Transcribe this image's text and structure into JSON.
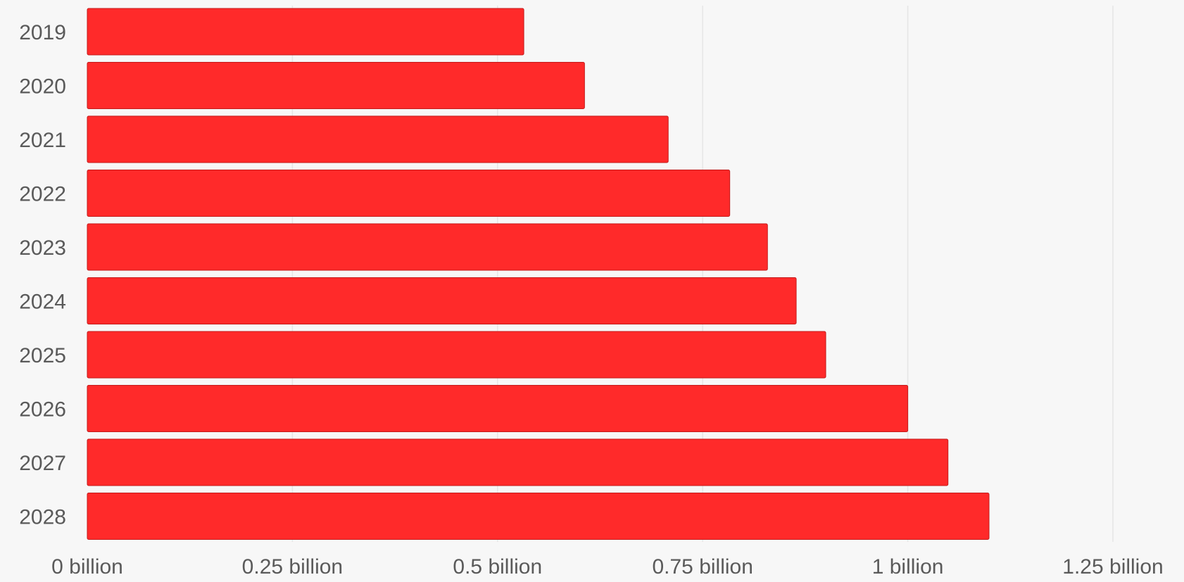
{
  "chart_data": {
    "type": "bar",
    "orientation": "horizontal",
    "categories": [
      "2019",
      "2020",
      "2021",
      "2022",
      "2023",
      "2024",
      "2025",
      "2026",
      "2027",
      "2028"
    ],
    "values": [
      0.532,
      0.606,
      0.708,
      0.783,
      0.829,
      0.864,
      0.9,
      1.0,
      1.049,
      1.099
    ],
    "x_ticks": [
      0,
      0.25,
      0.5,
      0.75,
      1,
      1.25
    ],
    "x_tick_labels": [
      "0 billion",
      "0.25 billion",
      "0.5 billion",
      "0.75 billion",
      "1 billion",
      "1.25 billion"
    ],
    "xlim": [
      0,
      1.25
    ],
    "title": "",
    "xlabel": "",
    "ylabel": "",
    "grid": true,
    "bar_color": "#ff2a2a",
    "bar_edge_color": "#c41a1a"
  }
}
